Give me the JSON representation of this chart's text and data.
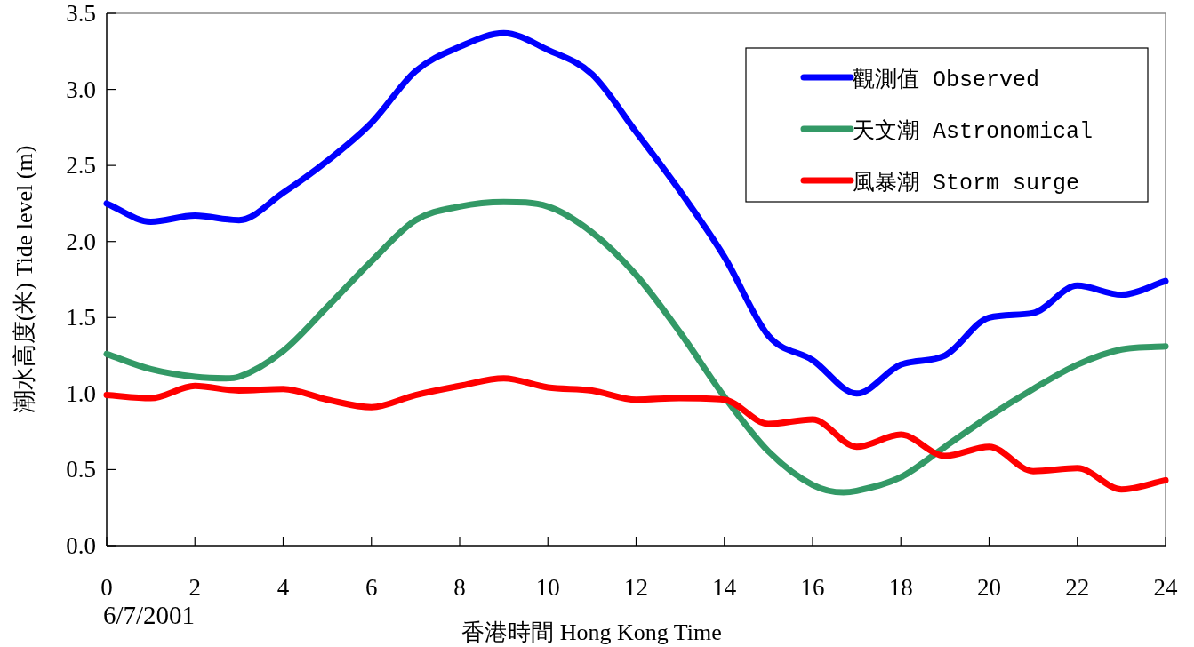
{
  "chart_data": {
    "type": "line",
    "xlabel": "香港時間  Hong Kong Time",
    "ylabel": "潮水高度(米)  Tide level (m)",
    "annotations": [
      "6/7/2001"
    ],
    "xlim": [
      0,
      24
    ],
    "xticks": [
      0,
      2,
      4,
      6,
      8,
      10,
      12,
      14,
      16,
      18,
      20,
      22,
      24
    ],
    "ylim": [
      0,
      3.5
    ],
    "yticks": [
      {
        "value": 0,
        "label": "0.0"
      },
      {
        "value": 0.5,
        "label": "0.5"
      },
      {
        "value": 1,
        "label": "1.0"
      },
      {
        "value": 1.5,
        "label": "1.5"
      },
      {
        "value": 2,
        "label": "2.0"
      },
      {
        "value": 2.5,
        "label": "2.5"
      },
      {
        "value": 3,
        "label": "3.0"
      },
      {
        "value": 3.5,
        "label": "3.5"
      }
    ],
    "grid": false,
    "legend": "top right",
    "marker": "none",
    "line_style": "solid",
    "series": [
      {
        "name": "觀測值 Observed",
        "color": "#0000ff",
        "x": [
          0,
          1,
          2,
          3,
          4,
          5,
          6,
          7,
          8,
          9,
          10,
          11,
          12,
          13,
          14,
          15,
          16,
          17,
          18,
          19,
          20,
          21,
          22,
          23,
          24
        ],
        "values": [
          2.25,
          2.13,
          2.17,
          2.14,
          2.32,
          2.53,
          2.78,
          3.12,
          3.28,
          3.37,
          3.26,
          3.1,
          2.72,
          2.33,
          1.9,
          1.38,
          1.22,
          1.0,
          1.19,
          1.25,
          1.5,
          1.53,
          1.71,
          1.65,
          1.74
        ]
      },
      {
        "name": "天文潮 Astronomical",
        "color": "#339966",
        "x": [
          0,
          1,
          2,
          2.7,
          3,
          4,
          5,
          6,
          7,
          8,
          9,
          10,
          11,
          12,
          13,
          14,
          15,
          16,
          16.7,
          17,
          18,
          19,
          20,
          21,
          22,
          23,
          24
        ],
        "values": [
          1.26,
          1.16,
          1.11,
          1.1,
          1.11,
          1.28,
          1.57,
          1.87,
          2.14,
          2.23,
          2.26,
          2.23,
          2.06,
          1.78,
          1.4,
          0.98,
          0.62,
          0.4,
          0.35,
          0.36,
          0.45,
          0.65,
          0.85,
          1.03,
          1.19,
          1.29,
          1.31
        ]
      },
      {
        "name": "風暴潮 Storm surge",
        "color": "#ff0000",
        "x": [
          0,
          1,
          2,
          3,
          4,
          5,
          6,
          7,
          8,
          9,
          10,
          11,
          12,
          13,
          14,
          15,
          16,
          17,
          18,
          19,
          20,
          21,
          22,
          23,
          24
        ],
        "values": [
          0.99,
          0.97,
          1.05,
          1.02,
          1.03,
          0.96,
          0.91,
          0.99,
          1.05,
          1.1,
          1.04,
          1.02,
          0.96,
          0.97,
          0.96,
          0.8,
          0.83,
          0.65,
          0.73,
          0.59,
          0.65,
          0.49,
          0.51,
          0.37,
          0.43
        ]
      }
    ]
  }
}
